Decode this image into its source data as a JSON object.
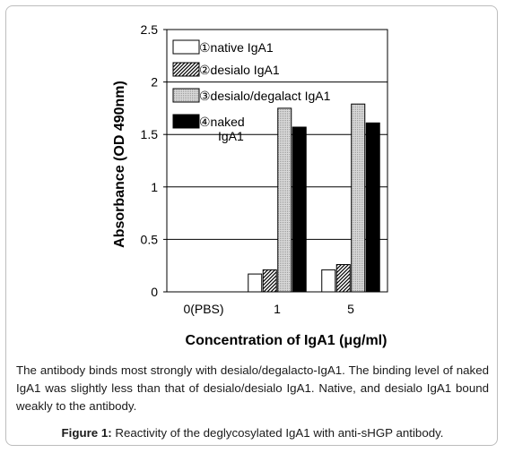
{
  "chart_data": {
    "type": "bar",
    "categories": [
      "0(PBS)",
      "1",
      "5"
    ],
    "series": [
      {
        "name": "①native IgA1",
        "values": [
          0,
          0.17,
          0.21
        ],
        "pattern": "white"
      },
      {
        "name": "②desialo IgA1",
        "values": [
          0,
          0.21,
          0.26
        ],
        "pattern": "hatch"
      },
      {
        "name": "③desialo/degalact IgA1",
        "values": [
          0,
          1.75,
          1.79
        ],
        "pattern": "dotted"
      },
      {
        "name": "④naked IgA1",
        "values": [
          0,
          1.57,
          1.61
        ],
        "pattern": "black"
      }
    ],
    "legend_labels": [
      [
        "①native IgA1"
      ],
      [
        "②desialo IgA1"
      ],
      [
        "③desialo/degalact IgA1"
      ],
      [
        "④naked",
        "IgA1"
      ]
    ],
    "xlabel": "Concentration of IgA1 (μg/ml)",
    "ylabel": "Absorbance (OD 490nm)",
    "ylim": [
      0,
      2.5
    ],
    "yticks": [
      "0",
      "0.5",
      "1",
      "1.5",
      "2",
      "2.5"
    ],
    "grid": true,
    "legend_position": "top-left"
  },
  "caption": {
    "text": "The antibody binds most strongly with desialo/degalacto-IgA1. The binding level of naked IgA1 was slightly less than that of desialo/desialo IgA1. Native, and desialo IgA1 bound weakly to the antibody.",
    "figure_label": "Figure 1:",
    "figure_text": " Reactivity of the deglycosylated IgA1 with anti-sHGP antibody."
  }
}
